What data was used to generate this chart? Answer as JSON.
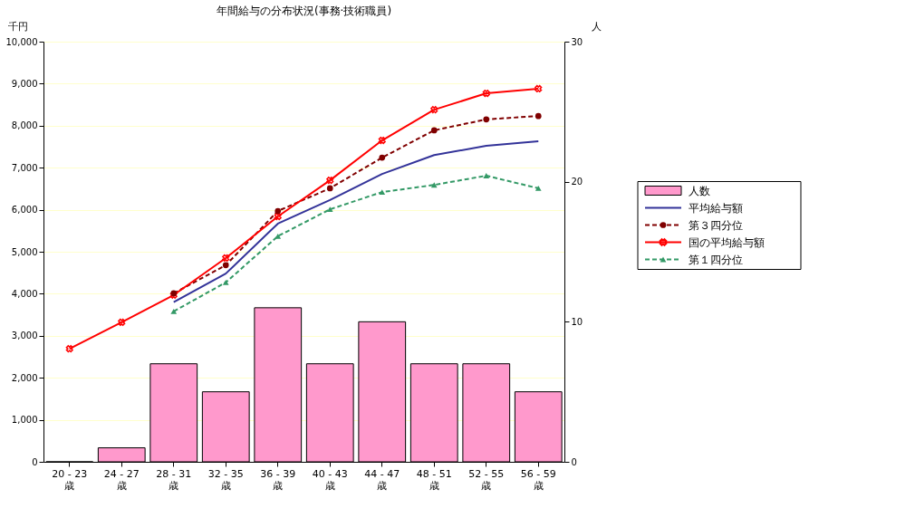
{
  "chart_data": {
    "type": "line",
    "title": "年間給与の分布状況(事務·技術職員)",
    "ylabel": "千円",
    "y2label": "人",
    "categories": [
      "20 - 23\n歳",
      "24 - 27\n歳",
      "28 - 31\n歳",
      "32 - 35\n歳",
      "36 - 39\n歳",
      "40 - 43\n歳",
      "44 - 47\n歳",
      "48 - 51\n歳",
      "52 - 55\n歳",
      "56 - 59\n歳"
    ],
    "series": [
      {
        "name": "人数",
        "type": "bar",
        "axis": "y2",
        "color": "#ff99cc",
        "values": [
          0,
          1,
          7,
          5,
          11,
          7,
          10,
          7,
          7,
          5
        ]
      },
      {
        "name": "平均給与額",
        "color": "#333399",
        "marker": "none",
        "line_style": "solid",
        "values": [
          null,
          null,
          3800,
          4480,
          5670,
          6230,
          6850,
          7300,
          7520,
          7630
        ]
      },
      {
        "name": "第３四分位",
        "color": "#800000",
        "marker": "circle",
        "line_style": "dashed",
        "values": [
          null,
          null,
          4010,
          4680,
          5970,
          6510,
          7240,
          7890,
          8150,
          8230
        ]
      },
      {
        "name": "国の平均給与額",
        "color": "#ff0000",
        "marker": "cross",
        "line_style": "solid",
        "values": [
          2690,
          3320,
          3970,
          4850,
          5840,
          6700,
          7650,
          8380,
          8770,
          8880
        ]
      },
      {
        "name": "第１四分位",
        "color": "#339966",
        "marker": "triangle",
        "line_style": "dashed",
        "values": [
          null,
          null,
          3580,
          4270,
          5370,
          6010,
          6420,
          6590,
          6810,
          6510
        ]
      }
    ],
    "ylim": [
      0,
      10000
    ],
    "yticks": [
      {
        "value": 0,
        "label": "0"
      },
      {
        "value": 1000,
        "label": "1,000"
      },
      {
        "value": 2000,
        "label": "2,000"
      },
      {
        "value": 3000,
        "label": "3,000"
      },
      {
        "value": 4000,
        "label": "4,000"
      },
      {
        "value": 5000,
        "label": "5,000"
      },
      {
        "value": 6000,
        "label": "6,000"
      },
      {
        "value": 7000,
        "label": "7,000"
      },
      {
        "value": 8000,
        "label": "8,000"
      },
      {
        "value": 9000,
        "label": "9,000"
      },
      {
        "value": 10000,
        "label": "10,000"
      }
    ],
    "y2lim": [
      0,
      30
    ],
    "y2ticks": [
      0,
      10,
      20,
      30
    ],
    "grid": "y",
    "legend": "right"
  }
}
